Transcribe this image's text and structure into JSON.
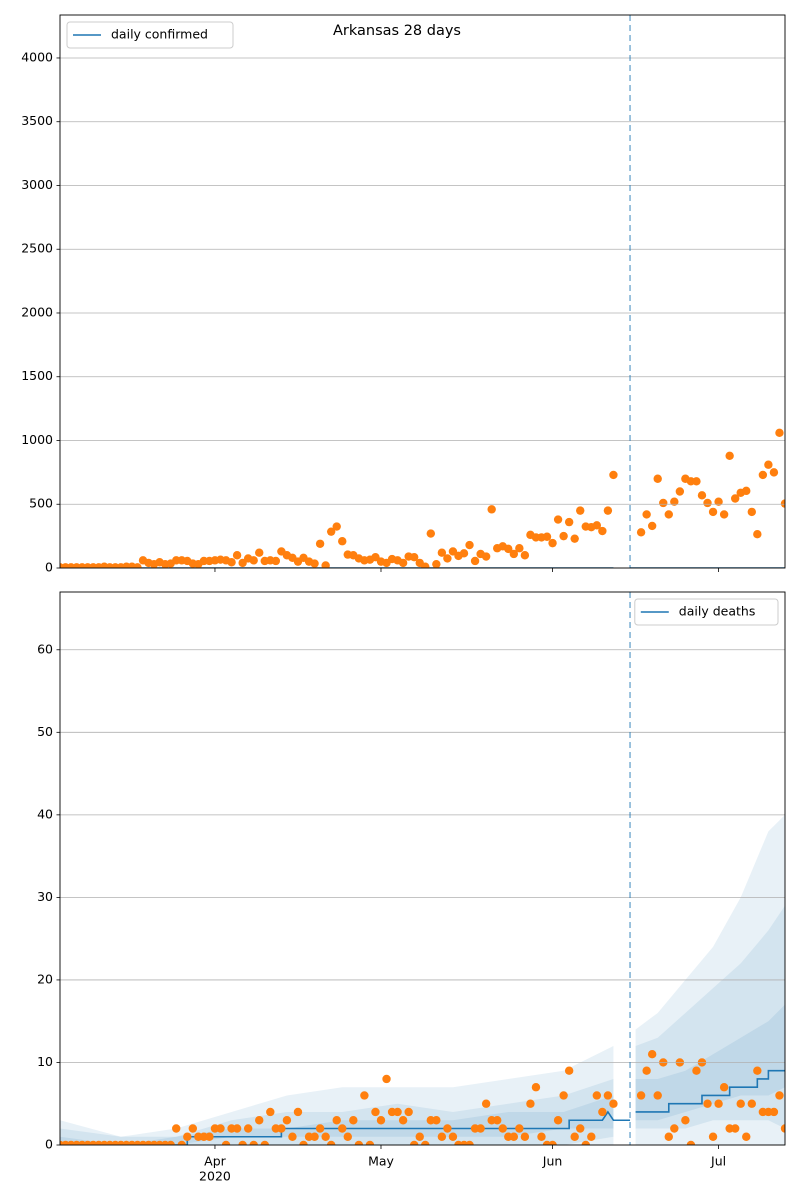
{
  "chart_data": [
    {
      "type": "scatter",
      "title": "Arkansas 28 days",
      "xlim": [
        64,
        195
      ],
      "ylim": [
        0,
        4337
      ],
      "yticks": [
        0,
        500,
        1000,
        1500,
        2000,
        2500,
        3000,
        3500,
        4000
      ],
      "grid": true,
      "legend": "upper left",
      "vline": 167,
      "x": [
        64,
        65,
        66,
        67,
        68,
        69,
        70,
        71,
        72,
        73,
        74,
        75,
        76,
        77,
        78,
        79,
        80,
        81,
        82,
        83,
        84,
        85,
        86,
        87,
        88,
        89,
        90,
        91,
        92,
        93,
        94,
        95,
        96,
        97,
        98,
        99,
        100,
        101,
        102,
        103,
        104,
        105,
        106,
        107,
        108,
        109,
        110,
        111,
        112,
        113,
        114,
        115,
        116,
        117,
        118,
        119,
        120,
        121,
        122,
        123,
        124,
        125,
        126,
        127,
        128,
        129,
        130,
        131,
        132,
        133,
        134,
        135,
        136,
        137,
        138,
        139,
        140,
        141,
        142,
        143,
        144,
        145,
        146,
        147,
        148,
        149,
        150,
        151,
        152,
        153,
        154,
        155,
        156,
        157,
        158,
        159,
        160,
        161,
        162,
        163,
        164,
        165,
        166,
        167,
        168,
        169,
        170,
        171,
        172,
        173,
        174,
        175,
        176,
        177,
        178,
        179,
        180,
        181,
        182,
        183,
        184,
        185,
        186,
        187,
        188,
        189,
        190,
        191,
        192,
        193,
        194,
        195
      ],
      "series": [
        {
          "name": "daily confirmed",
          "type": "line",
          "color": "#1f77b4",
          "x": [
            64,
            164,
            165,
            167,
            195
          ],
          "values": [
            0,
            0,
            null,
            0,
            0
          ]
        },
        {
          "type": "scatter",
          "color": "#ff7f0e",
          "values": [
            5,
            5,
            5,
            5,
            5,
            5,
            5,
            5,
            10,
            5,
            5,
            5,
            10,
            10,
            5,
            60,
            40,
            30,
            45,
            30,
            35,
            60,
            60,
            55,
            35,
            30,
            55,
            55,
            60,
            65,
            60,
            45,
            100,
            40,
            75,
            60,
            120,
            55,
            60,
            55,
            130,
            100,
            80,
            50,
            80,
            50,
            35,
            190,
            20,
            285,
            325,
            210,
            105,
            100,
            75,
            60,
            65,
            85,
            50,
            40,
            70,
            60,
            40,
            90,
            85,
            40,
            10,
            270,
            30,
            120,
            75,
            130,
            95,
            115,
            180,
            55,
            110,
            90,
            460,
            155,
            170,
            150,
            110,
            155,
            100,
            260,
            240,
            240,
            245,
            195,
            380,
            250,
            360,
            230,
            450,
            325,
            320,
            335,
            290,
            450,
            730,
            null,
            null,
            null,
            null,
            280,
            420,
            330,
            700,
            510,
            420,
            520,
            600,
            700,
            680,
            680,
            570,
            510,
            440,
            520,
            420,
            880,
            545,
            590,
            605,
            440,
            265,
            730,
            810,
            750,
            1060,
            505
          ]
        }
      ]
    },
    {
      "type": "scatter",
      "xlim": [
        64,
        195
      ],
      "ylim": [
        0,
        67
      ],
      "yticks": [
        0,
        10,
        20,
        30,
        40,
        50,
        60
      ],
      "xticks": [
        {
          "value": 92,
          "label": "Apr"
        },
        {
          "value": 122,
          "label": "May"
        },
        {
          "value": 153,
          "label": "Jun"
        },
        {
          "value": 183,
          "label": "Jul"
        }
      ],
      "x_year_label": "2020",
      "grid": true,
      "legend": "upper right",
      "vline": 167,
      "x": [
        64,
        65,
        66,
        67,
        68,
        69,
        70,
        71,
        72,
        73,
        74,
        75,
        76,
        77,
        78,
        79,
        80,
        81,
        82,
        83,
        84,
        85,
        86,
        87,
        88,
        89,
        90,
        91,
        92,
        93,
        94,
        95,
        96,
        97,
        98,
        99,
        100,
        101,
        102,
        103,
        104,
        105,
        106,
        107,
        108,
        109,
        110,
        111,
        112,
        113,
        114,
        115,
        116,
        117,
        118,
        119,
        120,
        121,
        122,
        123,
        124,
        125,
        126,
        127,
        128,
        129,
        130,
        131,
        132,
        133,
        134,
        135,
        136,
        137,
        138,
        139,
        140,
        141,
        142,
        143,
        144,
        145,
        146,
        147,
        148,
        149,
        150,
        151,
        152,
        153,
        154,
        155,
        156,
        157,
        158,
        159,
        160,
        161,
        162,
        163,
        164,
        165,
        166,
        167,
        168,
        169,
        170,
        171,
        172,
        173,
        174,
        175,
        176,
        177,
        178,
        179,
        180,
        181,
        182,
        183,
        184,
        185,
        186,
        187,
        188,
        189,
        190,
        191,
        192,
        193,
        194,
        195
      ],
      "bands": [
        {
          "color": "#1f77b4",
          "opacity": 0.1,
          "x": [
            64,
            75,
            85,
            95,
            105,
            115,
            125,
            135,
            145,
            155,
            164,
            166,
            168,
            172,
            177,
            182,
            187,
            192,
            195
          ],
          "upper": [
            3,
            1,
            2,
            4,
            6,
            7,
            7,
            7,
            8,
            9,
            12,
            null,
            14,
            16,
            20,
            24,
            30,
            38,
            40
          ],
          "lower": [
            0,
            0,
            0,
            0,
            0,
            0,
            0,
            0,
            0,
            0,
            0,
            null,
            0,
            0,
            0,
            0,
            0,
            0,
            0
          ]
        },
        {
          "color": "#1f77b4",
          "opacity": 0.1,
          "x": [
            64,
            75,
            85,
            95,
            105,
            115,
            125,
            135,
            145,
            155,
            164,
            166,
            168,
            172,
            177,
            182,
            187,
            192,
            195
          ],
          "upper": [
            2,
            1,
            1,
            3,
            4,
            4,
            5,
            4,
            5,
            6,
            8,
            null,
            12,
            13,
            16,
            19,
            22,
            26,
            29
          ],
          "lower": [
            0,
            0,
            0,
            0,
            0,
            0,
            0,
            0,
            0,
            0,
            1,
            null,
            2,
            2,
            2,
            3,
            3,
            3,
            2
          ]
        },
        {
          "color": "#1f77b4",
          "opacity": 0.1,
          "x": [
            64,
            75,
            85,
            95,
            105,
            115,
            125,
            135,
            145,
            155,
            164,
            166,
            168,
            172,
            177,
            182,
            187,
            192,
            195
          ],
          "upper": [
            1,
            0,
            1,
            2,
            2,
            3,
            3,
            3,
            4,
            4,
            6,
            null,
            8,
            8,
            9,
            11,
            13,
            15,
            17
          ],
          "lower": [
            0,
            0,
            0,
            1,
            1,
            1,
            1,
            1,
            1,
            2,
            2,
            null,
            3,
            3,
            4,
            5,
            6,
            6,
            7
          ]
        }
      ],
      "series": [
        {
          "name": "daily deaths",
          "type": "line",
          "color": "#1f77b4",
          "x": [
            64,
            87,
            87,
            104,
            104,
            156,
            156,
            162,
            163,
            164,
            167,
            167.5,
            168,
            174,
            174,
            180,
            180,
            185,
            185,
            190,
            190,
            192,
            192,
            195
          ],
          "values": [
            0,
            0,
            1,
            1,
            2,
            2,
            3,
            3,
            4,
            3,
            3,
            null,
            4,
            4,
            5,
            5,
            6,
            6,
            7,
            7,
            8,
            8,
            9,
            9
          ]
        },
        {
          "type": "scatter",
          "color": "#ff7f0e",
          "values": [
            0,
            0,
            0,
            0,
            0,
            0,
            0,
            0,
            0,
            0,
            0,
            0,
            0,
            0,
            0,
            0,
            0,
            0,
            0,
            0,
            0,
            2,
            0,
            1,
            2,
            1,
            1,
            1,
            2,
            2,
            0,
            2,
            2,
            0,
            2,
            0,
            3,
            0,
            4,
            2,
            2,
            3,
            1,
            4,
            0,
            1,
            1,
            2,
            1,
            0,
            3,
            2,
            1,
            3,
            0,
            6,
            0,
            4,
            3,
            8,
            4,
            4,
            3,
            4,
            0,
            1,
            0,
            3,
            3,
            1,
            2,
            1,
            0,
            0,
            0,
            2,
            2,
            5,
            3,
            3,
            2,
            1,
            1,
            2,
            1,
            5,
            7,
            1,
            0,
            0,
            3,
            6,
            9,
            1,
            2,
            0,
            1,
            6,
            4,
            6,
            5,
            null,
            null,
            null,
            null,
            6,
            9,
            11,
            6,
            10,
            1,
            2,
            10,
            3,
            0,
            9,
            10,
            5,
            1,
            5,
            7,
            2,
            2,
            5,
            1,
            5,
            9,
            4,
            4,
            4,
            6,
            2
          ]
        }
      ]
    }
  ]
}
